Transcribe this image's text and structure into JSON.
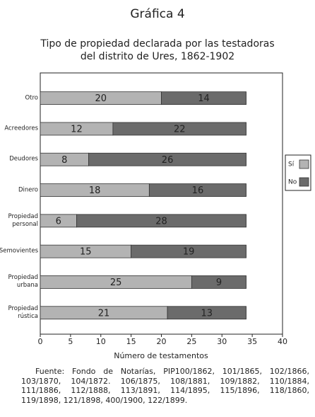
{
  "chart_data": {
    "type": "stacked-barh",
    "header": "Gráfica 4",
    "title": "Tipo de propiedad declarada por las testadoras",
    "subtitle": "del distrito de Ures, 1862-1902",
    "xlabel": "Número de testamentos",
    "categories": [
      "Otro",
      "Acreedores",
      "Deudores",
      "Dinero",
      "Propiedad\npersonal",
      "Semovientes",
      "Propiedad\nurbana",
      "Propiedad\nrústica"
    ],
    "series": [
      {
        "name": "Sí",
        "color": "#b3b3b3",
        "values": [
          20,
          12,
          8,
          18,
          6,
          15,
          25,
          21
        ]
      },
      {
        "name": "No",
        "color": "#6b6b6b",
        "values": [
          14,
          22,
          26,
          16,
          28,
          19,
          9,
          13
        ]
      }
    ],
    "xlim": [
      0,
      40
    ],
    "xticks": [
      0,
      5,
      10,
      15,
      20,
      25,
      30,
      35,
      40
    ],
    "legend": "right",
    "source": "Fuente: Fondo de Notarías, PIP100/1862, 101/1865, 102/1866, 103/1870, 104/1872. 106/1875, 108/1881, 109/1882, 110/1884, 111/1886, 112/1888, 113/1891, 114/1895, 115/1896, 118/1860, 119/1898, 121/1898, 400/1900, 122/1899."
  }
}
